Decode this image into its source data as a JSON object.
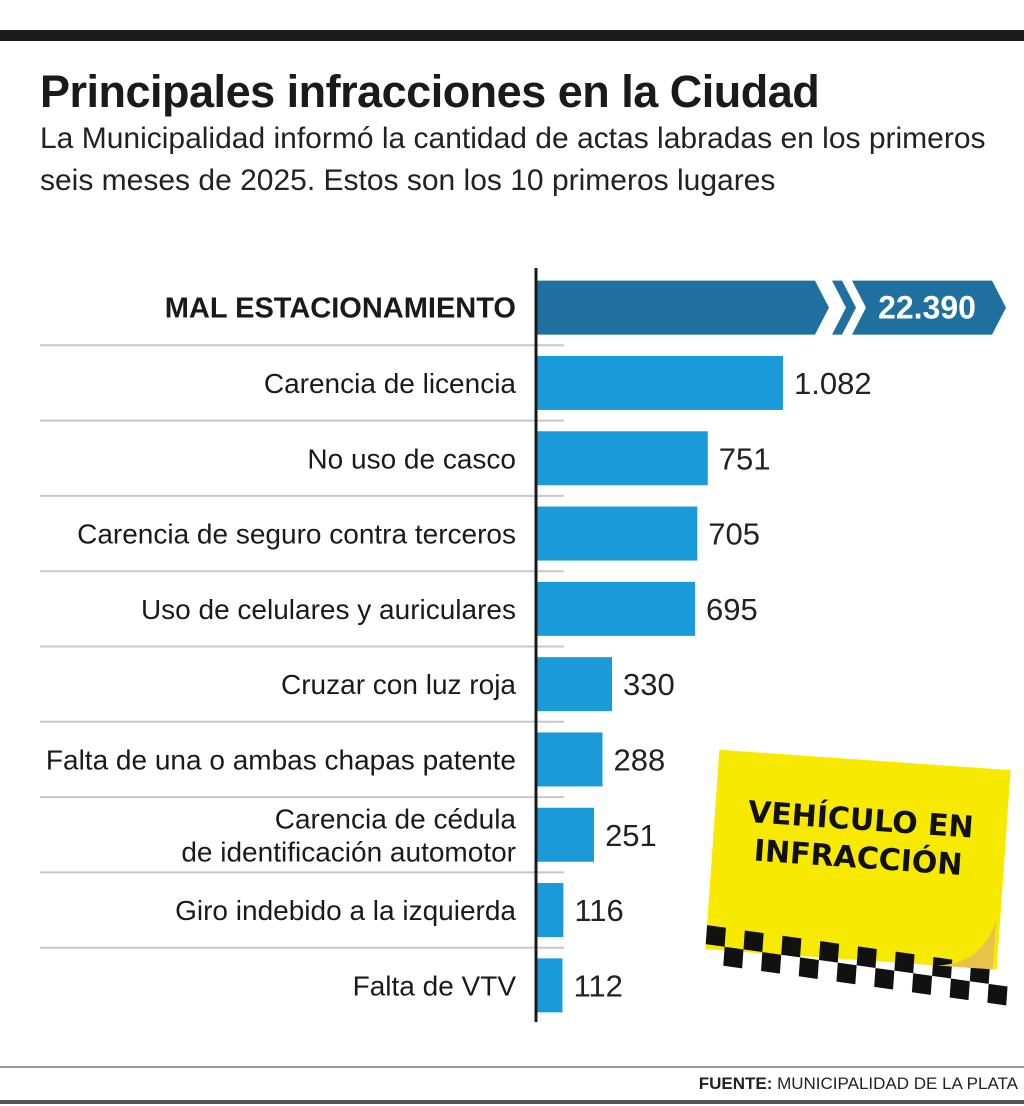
{
  "chart_data": {
    "type": "bar",
    "orientation": "horizontal",
    "title": "Principales infracciones en la Ciudad",
    "subtitle": "La Municipalidad informó la cantidad de actas labradas en los primeros seis meses de 2025. Estos son los 10 primeros lugares",
    "categories": [
      [
        "MAL ESTACIONAMIENTO"
      ],
      [
        "Carencia de licencia"
      ],
      [
        "No uso de casco"
      ],
      [
        "Carencia de seguro contra terceros"
      ],
      [
        "Uso de celulares y auriculares"
      ],
      [
        "Cruzar con luz roja"
      ],
      [
        "Falta de una o ambas chapas patente"
      ],
      [
        "Carencia de cédula",
        "de identificación automotor"
      ],
      [
        "Giro indebido a la izquierda"
      ],
      [
        "Falta de VTV"
      ]
    ],
    "values": [
      22390,
      1082,
      751,
      705,
      695,
      330,
      288,
      251,
      116,
      112
    ],
    "value_labels": [
      "22.390",
      "1.082",
      "751",
      "705",
      "695",
      "330",
      "288",
      "251",
      "116",
      "112"
    ],
    "axis_break_on_first_bar": true
  },
  "sticker": {
    "line1": "VEHÍCULO EN",
    "line2": "INFRACCIÓN"
  },
  "footer": {
    "source_label": "FUENTE:",
    "source_value": "MUNICIPALIDAD DE LA PLATA"
  },
  "colors": {
    "bar": "#1a9ad9",
    "top_bar": "#1f6f9f",
    "sticker": "#f7ea00"
  }
}
